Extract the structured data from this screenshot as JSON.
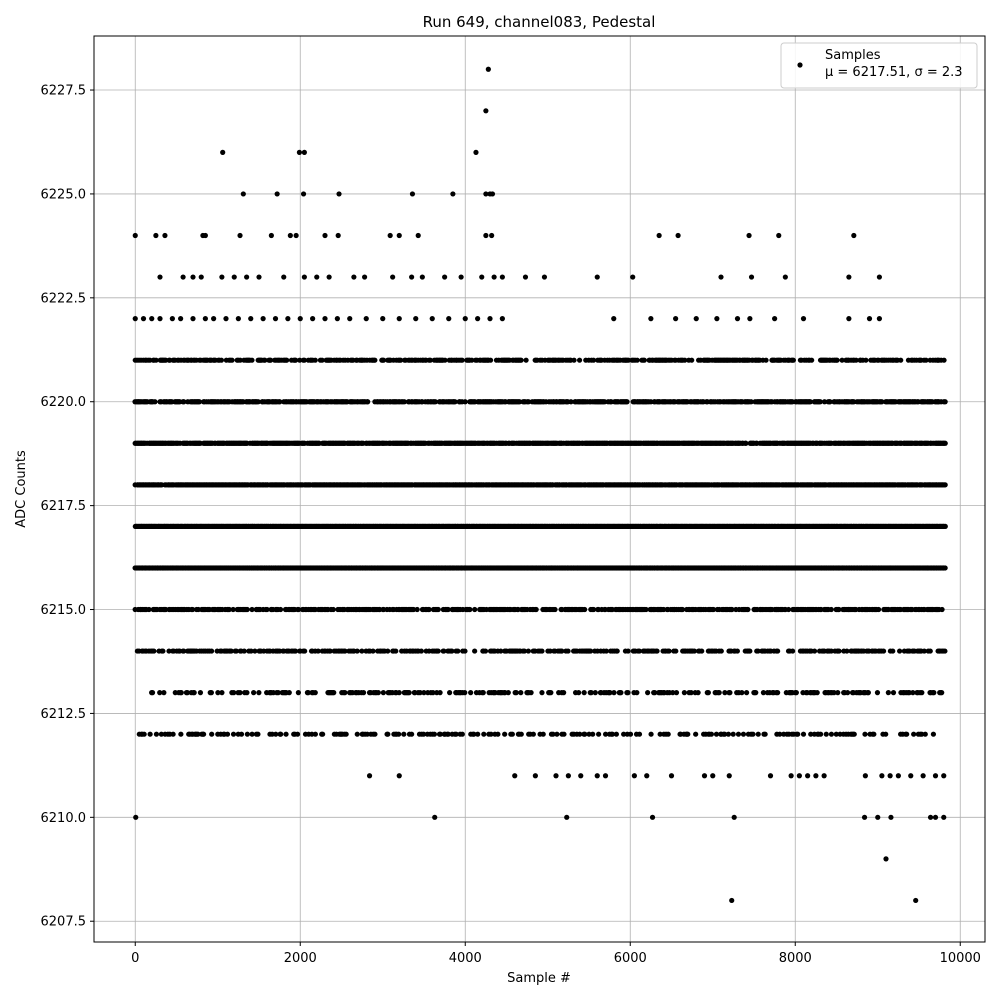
{
  "chart_data": {
    "type": "scatter",
    "title": "Run 649, channel083, Pedestal",
    "xlabel": "Sample #",
    "ylabel": "ADC Counts",
    "xlim": [
      -500,
      10300
    ],
    "ylim": [
      6207.0,
      6228.8
    ],
    "x_ticks": [
      0,
      2000,
      4000,
      6000,
      8000,
      10000
    ],
    "x_tick_labels": [
      "0",
      "2000",
      "4000",
      "6000",
      "8000",
      "10000"
    ],
    "y_ticks": [
      6207.5,
      6210.0,
      6212.5,
      6215.0,
      6217.5,
      6220.0,
      6222.5,
      6225.0,
      6227.5
    ],
    "y_tick_labels": [
      "6207.5",
      "6210.0",
      "6212.5",
      "6215.0",
      "6217.5",
      "6220.0",
      "6222.5",
      "6225.0",
      "6227.5"
    ],
    "grid": true,
    "legend": {
      "placement": "top-right",
      "label": "Samples",
      "stats": "μ = 6217.51, σ = 2.3"
    },
    "marker_color": "#000000",
    "series": [
      {
        "name": "Samples",
        "points": [
          [
            4280,
            6228
          ],
          [
            4250,
            6227
          ],
          [
            1060,
            6226
          ],
          [
            1990,
            6226
          ],
          [
            2050,
            6226
          ],
          [
            4130,
            6226
          ],
          [
            1310,
            6225
          ],
          [
            1720,
            6225
          ],
          [
            2040,
            6225
          ],
          [
            2470,
            6225
          ],
          [
            3360,
            6225
          ],
          [
            3850,
            6225
          ],
          [
            4250,
            6225
          ],
          [
            4300,
            6225
          ],
          [
            4330,
            6225
          ],
          [
            0,
            6224
          ],
          [
            250,
            6224
          ],
          [
            360,
            6224
          ],
          [
            820,
            6224
          ],
          [
            850,
            6224
          ],
          [
            1270,
            6224
          ],
          [
            1650,
            6224
          ],
          [
            1880,
            6224
          ],
          [
            1950,
            6224
          ],
          [
            2300,
            6224
          ],
          [
            2460,
            6224
          ],
          [
            3090,
            6224
          ],
          [
            3200,
            6224
          ],
          [
            3430,
            6224
          ],
          [
            4250,
            6224
          ],
          [
            4320,
            6224
          ],
          [
            6350,
            6224
          ],
          [
            6580,
            6224
          ],
          [
            7440,
            6224
          ],
          [
            7800,
            6224
          ],
          [
            8710,
            6224
          ],
          [
            300,
            6223
          ],
          [
            580,
            6223
          ],
          [
            700,
            6223
          ],
          [
            800,
            6223
          ],
          [
            1050,
            6223
          ],
          [
            1200,
            6223
          ],
          [
            1350,
            6223
          ],
          [
            1500,
            6223
          ],
          [
            1800,
            6223
          ],
          [
            2050,
            6223
          ],
          [
            2200,
            6223
          ],
          [
            2350,
            6223
          ],
          [
            2650,
            6223
          ],
          [
            2780,
            6223
          ],
          [
            3120,
            6223
          ],
          [
            3350,
            6223
          ],
          [
            3480,
            6223
          ],
          [
            3750,
            6223
          ],
          [
            3950,
            6223
          ],
          [
            4200,
            6223
          ],
          [
            4350,
            6223
          ],
          [
            4450,
            6223
          ],
          [
            4730,
            6223
          ],
          [
            4960,
            6223
          ],
          [
            5600,
            6223
          ],
          [
            6030,
            6223
          ],
          [
            7100,
            6223
          ],
          [
            7470,
            6223
          ],
          [
            7880,
            6223
          ],
          [
            8650,
            6223
          ],
          [
            9020,
            6223
          ],
          [
            0,
            6222
          ],
          [
            100,
            6222
          ],
          [
            200,
            6222
          ],
          [
            300,
            6222
          ],
          [
            450,
            6222
          ],
          [
            550,
            6222
          ],
          [
            700,
            6222
          ],
          [
            850,
            6222
          ],
          [
            950,
            6222
          ],
          [
            1100,
            6222
          ],
          [
            1250,
            6222
          ],
          [
            1400,
            6222
          ],
          [
            1550,
            6222
          ],
          [
            1700,
            6222
          ],
          [
            1850,
            6222
          ],
          [
            2000,
            6222
          ],
          [
            2150,
            6222
          ],
          [
            2300,
            6222
          ],
          [
            2450,
            6222
          ],
          [
            2600,
            6222
          ],
          [
            2800,
            6222
          ],
          [
            3000,
            6222
          ],
          [
            3200,
            6222
          ],
          [
            3400,
            6222
          ],
          [
            3600,
            6222
          ],
          [
            3800,
            6222
          ],
          [
            4000,
            6222
          ],
          [
            4150,
            6222
          ],
          [
            4300,
            6222
          ],
          [
            4450,
            6222
          ],
          [
            5800,
            6222
          ],
          [
            6250,
            6222
          ],
          [
            6550,
            6222
          ],
          [
            6800,
            6222
          ],
          [
            7050,
            6222
          ],
          [
            7300,
            6222
          ],
          [
            7450,
            6222
          ],
          [
            7750,
            6222
          ],
          [
            8100,
            6222
          ],
          [
            8650,
            6222
          ],
          [
            8900,
            6222
          ],
          [
            9020,
            6222
          ],
          [
            6,
            6210
          ],
          [
            3630,
            6210
          ],
          [
            5230,
            6210
          ],
          [
            6270,
            6210
          ],
          [
            7260,
            6210
          ],
          [
            8840,
            6210
          ],
          [
            9000,
            6210
          ],
          [
            9160,
            6210
          ],
          [
            9640,
            6210
          ],
          [
            9700,
            6210
          ],
          [
            9800,
            6210
          ],
          [
            9100,
            6209
          ],
          [
            7230,
            6208
          ],
          [
            9460,
            6208
          ],
          [
            2840,
            6211
          ],
          [
            3200,
            6211
          ],
          [
            4600,
            6211
          ],
          [
            4850,
            6211
          ],
          [
            5100,
            6211
          ],
          [
            5250,
            6211
          ],
          [
            5400,
            6211
          ],
          [
            5600,
            6211
          ],
          [
            5700,
            6211
          ],
          [
            6050,
            6211
          ],
          [
            6200,
            6211
          ],
          [
            6500,
            6211
          ],
          [
            6900,
            6211
          ],
          [
            7000,
            6211
          ],
          [
            7200,
            6211
          ],
          [
            7700,
            6211
          ],
          [
            7950,
            6211
          ],
          [
            8050,
            6211
          ],
          [
            8150,
            6211
          ],
          [
            8250,
            6211
          ],
          [
            8350,
            6211
          ],
          [
            8850,
            6211
          ],
          [
            9050,
            6211
          ],
          [
            9150,
            6211
          ],
          [
            9250,
            6211
          ],
          [
            9400,
            6211
          ],
          [
            9550,
            6211
          ],
          [
            9700,
            6211
          ],
          [
            9800,
            6211
          ]
        ]
      }
    ],
    "dense_bands": [
      {
        "y": 6221,
        "x_start": 0,
        "x_end": 9820,
        "density": 0.55
      },
      {
        "y": 6220,
        "x_start": 0,
        "x_end": 9820,
        "density": 0.7
      },
      {
        "y": 6219,
        "x_start": 0,
        "x_end": 9820,
        "density": 0.85
      },
      {
        "y": 6218,
        "x_start": 0,
        "x_end": 9820,
        "density": 0.95
      },
      {
        "y": 6217,
        "x_start": 0,
        "x_end": 9820,
        "density": 1.0
      },
      {
        "y": 6216,
        "x_start": 0,
        "x_end": 9820,
        "density": 1.0
      },
      {
        "y": 6215,
        "x_start": 0,
        "x_end": 9820,
        "density": 0.6
      },
      {
        "y": 6214,
        "x_start": 0,
        "x_end": 9820,
        "density": 0.45
      },
      {
        "y": 6213,
        "x_start": 200,
        "x_end": 9820,
        "density": 0.3
      },
      {
        "y": 6212,
        "x_start": 50,
        "x_end": 9820,
        "density": 0.25
      }
    ]
  }
}
